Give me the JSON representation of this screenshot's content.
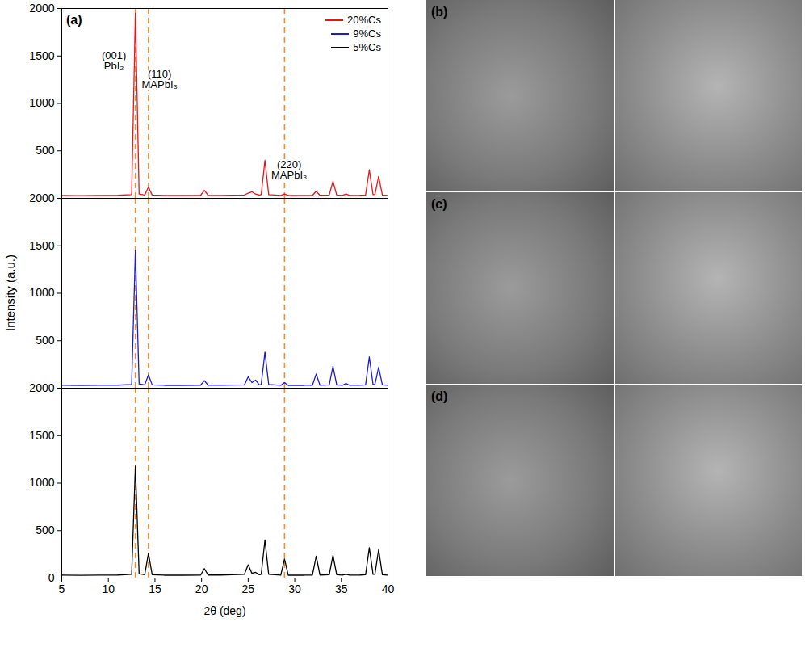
{
  "chart_data": {
    "type": "line",
    "panel_label": "(a)",
    "xlabel": "2θ (deg)",
    "ylabel": "Intensity (a.u.)",
    "xlim": [
      5,
      40
    ],
    "xticks": [
      5,
      10,
      15,
      20,
      25,
      30,
      35,
      40
    ],
    "grid": false,
    "legend": "top-right",
    "vlines": [
      12.9,
      14.3,
      28.9
    ],
    "x": [
      5,
      7,
      9,
      11,
      12.5,
      12.9,
      13.3,
      13.9,
      14.3,
      14.7,
      16,
      18,
      19.9,
      20.3,
      20.7,
      22,
      24.6,
      25.0,
      25.4,
      25.8,
      26.2,
      26.4,
      26.8,
      27.2,
      28.5,
      28.9,
      29.3,
      31,
      31.9,
      32.3,
      32.7,
      33.7,
      34.1,
      34.5,
      35.1,
      35.5,
      35.9,
      37,
      37.6,
      38.0,
      38.4,
      38.6,
      39.0,
      39.4,
      40
    ],
    "series": [
      {
        "name": "20%Cs",
        "color": "#e8141c",
        "ylim": [
          0,
          2000
        ],
        "yticks": [
          500,
          1000,
          1500,
          2000
        ],
        "values": [
          30,
          28,
          30,
          32,
          40,
          1950,
          45,
          35,
          120,
          35,
          30,
          30,
          32,
          85,
          32,
          30,
          35,
          55,
          70,
          45,
          35,
          40,
          400,
          40,
          30,
          45,
          30,
          30,
          32,
          75,
          32,
          35,
          180,
          35,
          30,
          45,
          30,
          32,
          35,
          300,
          40,
          40,
          230,
          35,
          30
        ],
        "annotations": [
          {
            "text": [
              "(001)",
              "PbI₂"
            ],
            "x": 10.6,
            "y": 1450
          },
          {
            "text": [
              "(110)",
              "MAPbI₃"
            ],
            "x": 15.5,
            "y": 1250
          },
          {
            "text": [
              "(220)",
              "MAPbI₃"
            ],
            "x": 29.4,
            "y": 300
          }
        ]
      },
      {
        "name": "9%Cs",
        "color": "#1c1cd0",
        "ylim": [
          0,
          2000
        ],
        "yticks": [
          500,
          1000,
          1500,
          2000
        ],
        "values": [
          30,
          28,
          30,
          32,
          40,
          1450,
          45,
          35,
          140,
          35,
          30,
          30,
          32,
          80,
          32,
          32,
          35,
          120,
          60,
          85,
          35,
          40,
          380,
          40,
          30,
          60,
          30,
          30,
          32,
          150,
          32,
          35,
          230,
          35,
          30,
          50,
          30,
          32,
          35,
          330,
          40,
          40,
          220,
          35,
          30
        ]
      },
      {
        "name": "5%Cs",
        "color": "#000000",
        "ylim": [
          0,
          2000
        ],
        "yticks": [
          0,
          500,
          1000,
          1500,
          2000
        ],
        "values": [
          30,
          28,
          30,
          32,
          40,
          1180,
          45,
          35,
          260,
          35,
          30,
          30,
          32,
          100,
          32,
          32,
          40,
          140,
          50,
          60,
          35,
          40,
          400,
          40,
          30,
          200,
          30,
          30,
          32,
          230,
          32,
          35,
          240,
          35,
          30,
          40,
          30,
          32,
          35,
          320,
          40,
          40,
          300,
          35,
          30
        ]
      }
    ]
  },
  "sem_panels": [
    {
      "label": "(b)"
    },
    {
      "label": "(c)"
    },
    {
      "label": "(d)"
    }
  ]
}
